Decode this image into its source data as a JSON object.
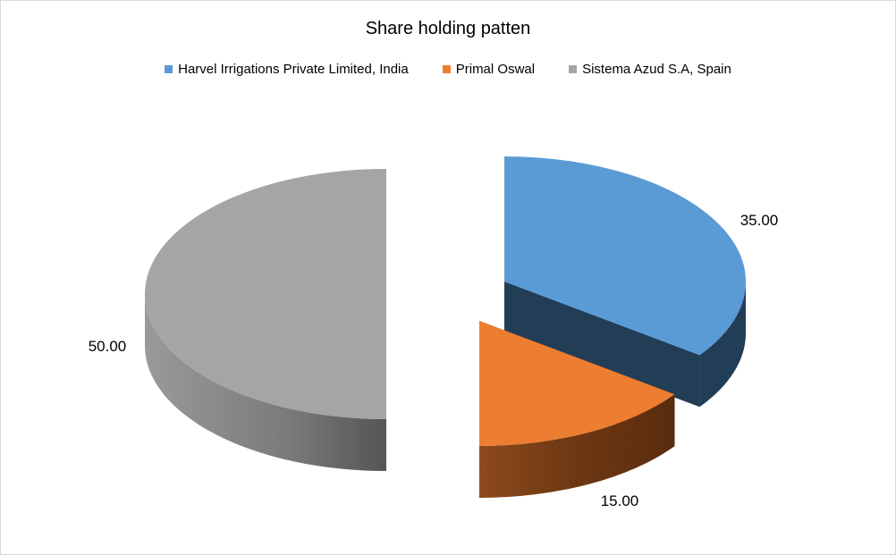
{
  "chart_data": {
    "type": "pie",
    "title": "Share holding patten",
    "legend_position": "top",
    "style": "3d-exploded",
    "slices": [
      {
        "label": "Harvel Irrigations Private Limited, India",
        "value": 35.0,
        "display": "35.00",
        "color": "#5b9bd5",
        "side_color": "#223d56"
      },
      {
        "label": "Primal Oswal",
        "value": 15.0,
        "display": "15.00",
        "color": "#ed7d31",
        "side_color": "#7a3f14"
      },
      {
        "label": "Sistema Azud S.A, Spain",
        "value": 50.0,
        "display": "50.00",
        "color": "#a5a5a5",
        "side_color": "#7f7f7f"
      }
    ]
  }
}
